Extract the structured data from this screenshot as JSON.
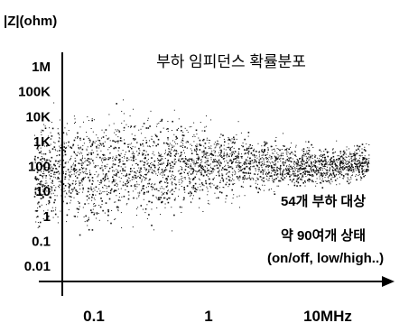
{
  "chart_data": {
    "type": "scatter",
    "title": "부하 임피던스 확률분포",
    "ylabel": "|Z|(ohm)",
    "xlabel": "",
    "x_scale": "log",
    "y_scale": "log",
    "y_ticks": [
      "1M",
      "100K",
      "10K",
      "1K",
      "100",
      "10",
      "1",
      "0.1",
      "0.01"
    ],
    "y_tick_values": [
      1000000,
      100000,
      10000,
      1000,
      100,
      10,
      1,
      0.1,
      0.01
    ],
    "x_ticks": [
      "0.1",
      "1",
      "10MHz"
    ],
    "x_tick_values": [
      0.1,
      1,
      10
    ],
    "xlim": [
      0.02,
      40
    ],
    "ylim": [
      0.003,
      3000000
    ],
    "annotations": [
      "54개 부하 대상",
      "약 90여개 상태",
      "(on/off, low/high..)"
    ],
    "point_color": "#111111",
    "density_band": [
      {
        "x": 0.03,
        "y_min": 0.1,
        "y_max": 30000
      },
      {
        "x": 0.1,
        "y_min": 0.05,
        "y_max": 100000
      },
      {
        "x": 0.3,
        "y_min": 0.2,
        "y_max": 50000
      },
      {
        "x": 1,
        "y_min": 1,
        "y_max": 20000
      },
      {
        "x": 3,
        "y_min": 5,
        "y_max": 3000
      },
      {
        "x": 10,
        "y_min": 10,
        "y_max": 1000
      },
      {
        "x": 25,
        "y_min": 15,
        "y_max": 1500
      }
    ]
  }
}
